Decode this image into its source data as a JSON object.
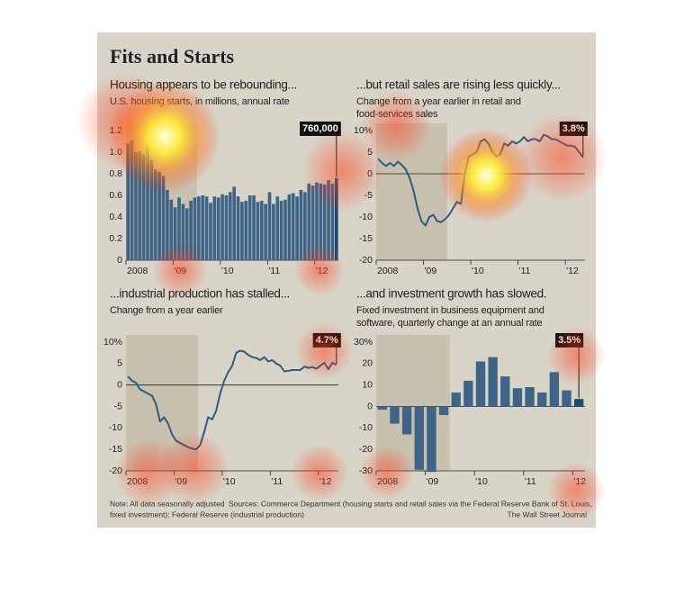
{
  "title": "Fits and Starts",
  "chart_data": [
    {
      "type": "bar",
      "title": "Housing appears to be rebounding...",
      "subtitle": [
        "U.S. housing starts, in millions, annual rate"
      ],
      "categories": [
        "2008",
        null,
        null,
        null,
        null,
        null,
        null,
        null,
        null,
        null,
        null,
        null,
        "'09",
        null,
        null,
        null,
        null,
        null,
        null,
        null,
        null,
        null,
        null,
        null,
        "'10",
        null,
        null,
        null,
        null,
        null,
        null,
        null,
        null,
        null,
        null,
        null,
        "'11",
        null,
        null,
        null,
        null,
        null,
        null,
        null,
        null,
        null,
        null,
        null,
        "'12",
        null,
        null,
        null,
        null,
        null
      ],
      "values": [
        1.08,
        1.11,
        1.0,
        1.01,
        0.98,
        1.05,
        0.93,
        0.84,
        0.82,
        0.78,
        0.65,
        0.56,
        0.49,
        0.58,
        0.52,
        0.48,
        0.55,
        0.58,
        0.59,
        0.6,
        0.59,
        0.53,
        0.59,
        0.58,
        0.61,
        0.6,
        0.63,
        0.68,
        0.59,
        0.54,
        0.55,
        0.6,
        0.6,
        0.54,
        0.55,
        0.52,
        0.63,
        0.52,
        0.59,
        0.55,
        0.56,
        0.61,
        0.62,
        0.59,
        0.65,
        0.63,
        0.71,
        0.69,
        0.72,
        0.71,
        0.7,
        0.74,
        0.71,
        0.76
      ],
      "value_labels": [
        null,
        null,
        null,
        null,
        null,
        null,
        null,
        null,
        null,
        null,
        null,
        null,
        null,
        null,
        null,
        null,
        null,
        null,
        null,
        null,
        null,
        null,
        null,
        null,
        null,
        null,
        null,
        null,
        null,
        null,
        null,
        null,
        null,
        null,
        null,
        null,
        null,
        null,
        null,
        null,
        null,
        null,
        null,
        null,
        null,
        null,
        null,
        null,
        null,
        null,
        null,
        null,
        null,
        "760,000"
      ],
      "color": "#3e6487",
      "last_color": "#1d4a72",
      "recession": [
        0,
        17
      ],
      "ylim": [
        0,
        1.2
      ],
      "yticks": [
        0,
        0.2,
        0.4,
        0.6,
        0.8,
        {
          "value": 1,
          "label": "1.0"
        },
        1.2
      ]
    },
    {
      "type": "line",
      "title": "...but retail sales are rising less quickly...",
      "subtitle": [
        "Change from a year earlier in retail and",
        "food-services sales"
      ],
      "categories": [
        "2008",
        null,
        null,
        null,
        null,
        null,
        null,
        null,
        null,
        null,
        null,
        null,
        "'09",
        null,
        null,
        null,
        null,
        null,
        null,
        null,
        null,
        null,
        null,
        null,
        "'10",
        null,
        null,
        null,
        null,
        null,
        null,
        null,
        null,
        null,
        null,
        null,
        "'11",
        null,
        null,
        null,
        null,
        null,
        null,
        null,
        null,
        null,
        null,
        null,
        "'12",
        null,
        null,
        null,
        null
      ],
      "values": [
        3.5,
        2.5,
        1.8,
        2.5,
        1.8,
        2.8,
        2,
        1,
        -1,
        -4,
        -8,
        -11,
        -12,
        -10,
        -9.5,
        -11,
        -11.2,
        -10.5,
        -9.5,
        -8,
        -6.5,
        -7,
        0,
        4,
        4.5,
        5,
        7.5,
        8,
        7,
        5,
        4,
        4.5,
        7,
        6.5,
        7.5,
        7,
        7.5,
        8.5,
        7.5,
        8,
        8,
        7.5,
        9,
        8.7,
        8,
        8,
        7.5,
        7,
        6.5,
        6.5,
        6.2,
        5,
        3.8
      ],
      "value_labels": [
        null,
        null,
        null,
        null,
        null,
        null,
        null,
        null,
        null,
        null,
        null,
        null,
        null,
        null,
        null,
        null,
        null,
        null,
        null,
        null,
        null,
        null,
        null,
        null,
        null,
        null,
        null,
        null,
        null,
        null,
        null,
        null,
        null,
        null,
        null,
        null,
        null,
        null,
        null,
        null,
        null,
        null,
        null,
        null,
        null,
        null,
        null,
        null,
        null,
        null,
        null,
        null,
        "3.8%"
      ],
      "color": "#2f5a80",
      "recession": [
        0,
        17
      ],
      "ylim": [
        -20,
        10
      ],
      "yticks": [
        {
          "value": 10,
          "label": "10%"
        },
        5,
        0,
        -5,
        -10,
        -15,
        -20
      ]
    },
    {
      "type": "line",
      "title": "...industrial production has stalled...",
      "subtitle": [
        "Change from a year earlier"
      ],
      "categories": [
        "2008",
        null,
        null,
        null,
        null,
        null,
        null,
        null,
        null,
        null,
        null,
        null,
        "'09",
        null,
        null,
        null,
        null,
        null,
        null,
        null,
        null,
        null,
        null,
        null,
        "'10",
        null,
        null,
        null,
        null,
        null,
        null,
        null,
        null,
        null,
        null,
        null,
        "'11",
        null,
        null,
        null,
        null,
        null,
        null,
        null,
        null,
        null,
        null,
        null,
        "'12",
        null,
        null,
        null,
        null
      ],
      "values": [
        2,
        1,
        0.5,
        -1,
        -1.5,
        -2,
        -2.5,
        -4.5,
        -8.5,
        -7.5,
        -9,
        -11.5,
        -13,
        -13.5,
        -14,
        -14.5,
        -14.8,
        -15,
        -14,
        -11,
        -7.5,
        -8,
        -6,
        -2,
        1,
        3,
        4.5,
        7.5,
        8,
        7.8,
        7,
        6.5,
        6.3,
        5.8,
        6.5,
        5.5,
        5.8,
        5,
        4.5,
        3.2,
        3.3,
        3.5,
        3.5,
        3.5,
        4.3,
        4,
        4.2,
        3.8,
        4.5,
        5.2,
        3.7,
        5.2,
        4.7
      ],
      "value_labels": [
        null,
        null,
        null,
        null,
        null,
        null,
        null,
        null,
        null,
        null,
        null,
        null,
        null,
        null,
        null,
        null,
        null,
        null,
        null,
        null,
        null,
        null,
        null,
        null,
        null,
        null,
        null,
        null,
        null,
        null,
        null,
        null,
        null,
        null,
        null,
        null,
        null,
        null,
        null,
        null,
        null,
        null,
        null,
        null,
        null,
        null,
        null,
        null,
        null,
        null,
        null,
        null,
        "4.7%"
      ],
      "color": "#2f5a80",
      "recession": [
        0,
        17
      ],
      "ylim": [
        -20,
        10
      ],
      "yticks": [
        {
          "value": 10,
          "label": "10%"
        },
        5,
        0,
        -5,
        -10,
        -15,
        -20
      ]
    },
    {
      "type": "bar",
      "title": "...and investment growth has slowed.",
      "subtitle": [
        "Fixed investment in business equipment and",
        "software, quarterly change at an annual rate"
      ],
      "categories": [
        "2008",
        null,
        null,
        null,
        "'09",
        null,
        null,
        null,
        "'10",
        null,
        null,
        null,
        "'11",
        null,
        null,
        null,
        "'12"
      ],
      "values": [
        -1.5,
        -8,
        -13,
        -29.5,
        -30.5,
        -4,
        6.5,
        12,
        21,
        23,
        14,
        8.5,
        9,
        6.5,
        16,
        7.5,
        3.5
      ],
      "value_labels": [
        null,
        null,
        null,
        null,
        null,
        null,
        null,
        null,
        null,
        null,
        null,
        null,
        null,
        null,
        null,
        null,
        "3.5%"
      ],
      "color": "#3e6487",
      "last_color": "#1d4a72",
      "recession": [
        0,
        5
      ],
      "ylim": [
        -30,
        30
      ],
      "yticks": [
        {
          "value": 30,
          "label": "30%"
        },
        20,
        10,
        0,
        -10,
        -20,
        -30
      ]
    }
  ],
  "note": "Note: All data seasonally adjusted",
  "sources": [
    "Sources: Commerce Department (housing starts and retail sales via the Federal Reserve Bank of St. Louis,",
    "fixed investment); Federal Reserve (industrial production)"
  ],
  "credit": "The Wall Street Journal"
}
